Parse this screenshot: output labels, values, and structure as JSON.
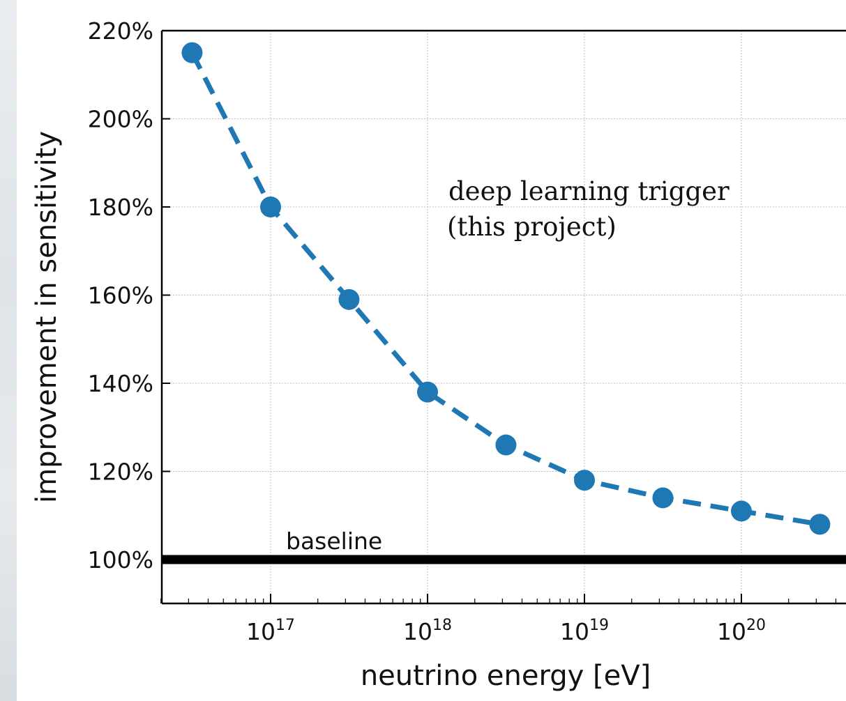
{
  "chart_data": {
    "type": "line",
    "xlabel": "neutrino energy [eV]",
    "ylabel": "improvement in sensitivity",
    "x_scale": "log",
    "xlim": [
      2e+16,
      4.5e+20
    ],
    "ylim": [
      90,
      220
    ],
    "grid": true,
    "x_ticks": [
      {
        "base": "10",
        "exp": "17",
        "value": 1e+17
      },
      {
        "base": "10",
        "exp": "18",
        "value": 1e+18
      },
      {
        "base": "10",
        "exp": "19",
        "value": 1e+19
      },
      {
        "base": "10",
        "exp": "20",
        "value": 1e+20
      }
    ],
    "y_ticks": [
      {
        "label": "100%",
        "value": 100
      },
      {
        "label": "120%",
        "value": 120
      },
      {
        "label": "140%",
        "value": 140
      },
      {
        "label": "160%",
        "value": 160
      },
      {
        "label": "180%",
        "value": 180
      },
      {
        "label": "200%",
        "value": 200
      },
      {
        "label": "220%",
        "value": 220
      }
    ],
    "series": [
      {
        "color": "#1f77b4",
        "line_style": "dashed",
        "marker": "circle",
        "x": [
          3.16e+16,
          1e+17,
          3.16e+17,
          1e+18,
          3.16e+18,
          1e+19,
          3.16e+19,
          1e+20,
          3.16e+20
        ],
        "y": [
          215,
          180,
          159,
          138,
          126,
          118,
          114,
          111,
          108
        ]
      }
    ],
    "baseline": {
      "value": 100,
      "label": "baseline",
      "color": "#000000"
    },
    "annotation": {
      "lines": [
        "deep learning trigger",
        "(this project)"
      ]
    }
  }
}
